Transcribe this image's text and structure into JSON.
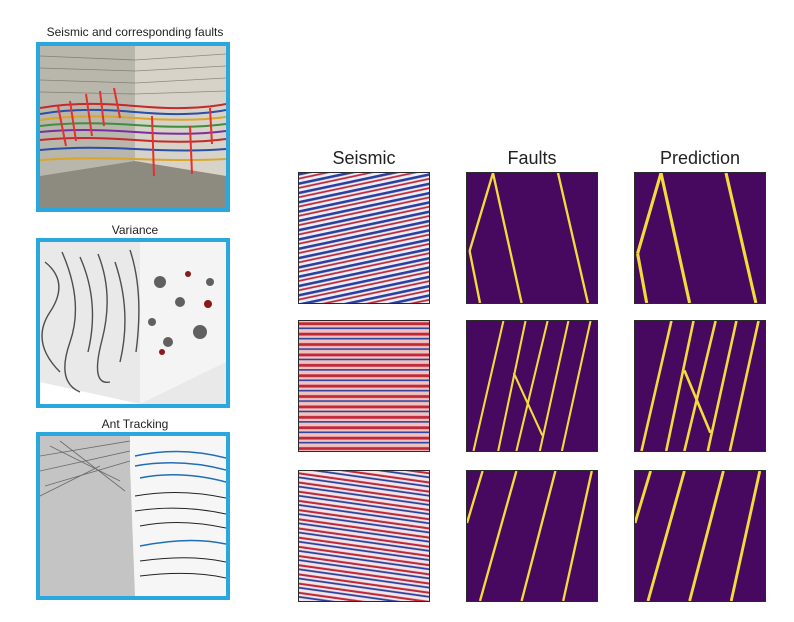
{
  "left_panels": [
    {
      "title": "Seismic and corresponding faults"
    },
    {
      "title": "Variance"
    },
    {
      "title": "Ant Tracking"
    }
  ],
  "grid": {
    "columns": [
      "Seismic",
      "Faults",
      "Prediction"
    ]
  },
  "colors": {
    "frame": "#2aa7dd",
    "fault_bg": "#47085f",
    "fault_line": "#f3dc3a",
    "seismic_red": "#c0283a",
    "seismic_blue": "#2b3f9e"
  }
}
